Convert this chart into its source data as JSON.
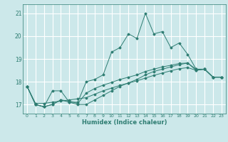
{
  "xlabel": "Humidex (Indice chaleur)",
  "ylabel": "",
  "bg_color": "#cce8ea",
  "grid_color": "#ffffff",
  "line_color": "#2e7d72",
  "xlim": [
    -0.5,
    23.5
  ],
  "ylim": [
    16.6,
    21.4
  ],
  "yticks": [
    17,
    18,
    19,
    20,
    21
  ],
  "xticks": [
    0,
    1,
    2,
    3,
    4,
    5,
    6,
    7,
    8,
    9,
    10,
    11,
    12,
    13,
    14,
    15,
    16,
    17,
    18,
    19,
    20,
    21,
    22,
    23
  ],
  "series": [
    [
      17.8,
      17.0,
      16.9,
      17.6,
      17.6,
      17.1,
      17.1,
      18.0,
      18.1,
      18.3,
      19.3,
      19.5,
      20.1,
      19.9,
      21.0,
      20.1,
      20.2,
      19.5,
      19.7,
      19.2,
      18.55,
      18.55,
      18.2,
      18.2
    ],
    [
      17.8,
      17.0,
      16.9,
      17.0,
      17.2,
      17.1,
      17.0,
      17.0,
      17.2,
      17.4,
      17.6,
      17.8,
      17.95,
      18.1,
      18.3,
      18.45,
      18.55,
      18.65,
      18.75,
      18.82,
      18.5,
      18.55,
      18.2,
      18.2
    ],
    [
      17.8,
      17.0,
      16.9,
      17.0,
      17.2,
      17.15,
      17.05,
      17.5,
      17.7,
      17.85,
      17.97,
      18.1,
      18.2,
      18.3,
      18.45,
      18.55,
      18.65,
      18.72,
      18.8,
      18.82,
      18.55,
      18.55,
      18.2,
      18.2
    ],
    [
      17.8,
      17.05,
      17.05,
      17.1,
      17.15,
      17.2,
      17.25,
      17.3,
      17.45,
      17.6,
      17.72,
      17.84,
      17.94,
      18.04,
      18.16,
      18.28,
      18.38,
      18.48,
      18.57,
      18.62,
      18.5,
      18.55,
      18.2,
      18.2
    ]
  ]
}
